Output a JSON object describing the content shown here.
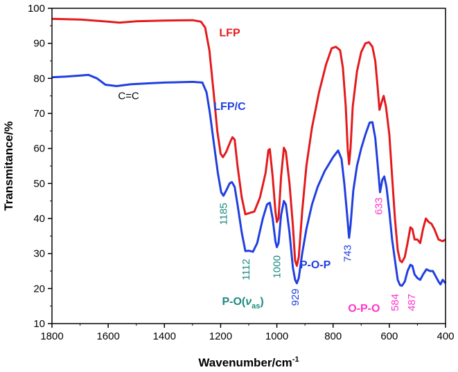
{
  "chart_data": {
    "type": "line",
    "title": "",
    "xlabel": "Wavenumber/cm",
    "xlabel_sup": "-1",
    "ylabel": "Transmitance/%",
    "xlim": [
      1800,
      400
    ],
    "ylim": [
      10,
      100
    ],
    "x_ticks": [
      "1800",
      "1600",
      "1400",
      "1200",
      "1000",
      "800",
      "600",
      "400"
    ],
    "y_ticks": [
      "10",
      "20",
      "30",
      "40",
      "50",
      "60",
      "70",
      "80",
      "90",
      "100"
    ],
    "grid": false,
    "series": [
      {
        "name": "LFP",
        "color": "#e31a1c",
        "points": [
          [
            1800,
            97
          ],
          [
            1700,
            96.8
          ],
          [
            1600,
            96.2
          ],
          [
            1560,
            95.9
          ],
          [
            1500,
            96.3
          ],
          [
            1400,
            96.5
          ],
          [
            1300,
            96.6
          ],
          [
            1270,
            96.2
          ],
          [
            1255,
            94.5
          ],
          [
            1240,
            88
          ],
          [
            1225,
            76
          ],
          [
            1212,
            65
          ],
          [
            1200,
            58.5
          ],
          [
            1192,
            57.5
          ],
          [
            1180,
            59
          ],
          [
            1165,
            62
          ],
          [
            1158,
            63.2
          ],
          [
            1150,
            62.5
          ],
          [
            1140,
            55
          ],
          [
            1125,
            46
          ],
          [
            1112,
            41.2
          ],
          [
            1100,
            41.5
          ],
          [
            1080,
            42
          ],
          [
            1060,
            46
          ],
          [
            1040,
            53
          ],
          [
            1030,
            59.5
          ],
          [
            1025,
            59.8
          ],
          [
            1015,
            52
          ],
          [
            1005,
            42
          ],
          [
            1000,
            39
          ],
          [
            994,
            40
          ],
          [
            985,
            52
          ],
          [
            975,
            60.2
          ],
          [
            968,
            59
          ],
          [
            955,
            50
          ],
          [
            943,
            38
          ],
          [
            935,
            28
          ],
          [
            929,
            26.5
          ],
          [
            922,
            29
          ],
          [
            910,
            42
          ],
          [
            895,
            55
          ],
          [
            875,
            66
          ],
          [
            850,
            76
          ],
          [
            825,
            84
          ],
          [
            805,
            88.6
          ],
          [
            790,
            89
          ],
          [
            775,
            88
          ],
          [
            765,
            83
          ],
          [
            755,
            72
          ],
          [
            748,
            60
          ],
          [
            743,
            55.5
          ],
          [
            738,
            60
          ],
          [
            730,
            72
          ],
          [
            715,
            82
          ],
          [
            700,
            87.5
          ],
          [
            685,
            90
          ],
          [
            672,
            90.3
          ],
          [
            660,
            89
          ],
          [
            650,
            85
          ],
          [
            642,
            78
          ],
          [
            635,
            71
          ],
          [
            628,
            73
          ],
          [
            620,
            75
          ],
          [
            612,
            72
          ],
          [
            600,
            64
          ],
          [
            590,
            52
          ],
          [
            580,
            40
          ],
          [
            570,
            31
          ],
          [
            562,
            28
          ],
          [
            555,
            27.5
          ],
          [
            545,
            29
          ],
          [
            535,
            33
          ],
          [
            525,
            37.5
          ],
          [
            518,
            37
          ],
          [
            510,
            34
          ],
          [
            500,
            34
          ],
          [
            490,
            33
          ],
          [
            480,
            37
          ],
          [
            470,
            40
          ],
          [
            460,
            39
          ],
          [
            450,
            38.5
          ],
          [
            440,
            37
          ],
          [
            425,
            34
          ],
          [
            410,
            33.5
          ],
          [
            400,
            34
          ]
        ]
      },
      {
        "name": "LFP/C",
        "color": "#1f3fe0",
        "points": [
          [
            1800,
            80.3
          ],
          [
            1750,
            80.5
          ],
          [
            1700,
            80.8
          ],
          [
            1670,
            81
          ],
          [
            1640,
            80
          ],
          [
            1610,
            78.2
          ],
          [
            1570,
            77.8
          ],
          [
            1520,
            78.3
          ],
          [
            1450,
            78.6
          ],
          [
            1400,
            78.8
          ],
          [
            1300,
            79
          ],
          [
            1265,
            78.8
          ],
          [
            1250,
            76
          ],
          [
            1238,
            70
          ],
          [
            1225,
            62
          ],
          [
            1210,
            53
          ],
          [
            1198,
            47.5
          ],
          [
            1190,
            46.5
          ],
          [
            1180,
            48
          ],
          [
            1168,
            50
          ],
          [
            1160,
            50.4
          ],
          [
            1150,
            49
          ],
          [
            1140,
            44
          ],
          [
            1125,
            36
          ],
          [
            1112,
            30.7
          ],
          [
            1100,
            30.8
          ],
          [
            1085,
            30.5
          ],
          [
            1070,
            33
          ],
          [
            1050,
            40
          ],
          [
            1035,
            44
          ],
          [
            1025,
            44.5
          ],
          [
            1015,
            40
          ],
          [
            1005,
            33.5
          ],
          [
            1000,
            31.8
          ],
          [
            994,
            33
          ],
          [
            985,
            41
          ],
          [
            975,
            45
          ],
          [
            968,
            44
          ],
          [
            955,
            36
          ],
          [
            943,
            26
          ],
          [
            935,
            22.5
          ],
          [
            929,
            21.5
          ],
          [
            922,
            23
          ],
          [
            910,
            30
          ],
          [
            895,
            37
          ],
          [
            875,
            44
          ],
          [
            855,
            49
          ],
          [
            830,
            53.5
          ],
          [
            800,
            57.5
          ],
          [
            782,
            59.4
          ],
          [
            770,
            57
          ],
          [
            760,
            50
          ],
          [
            750,
            41
          ],
          [
            743,
            34.5
          ],
          [
            738,
            38
          ],
          [
            728,
            48
          ],
          [
            715,
            55
          ],
          [
            700,
            60
          ],
          [
            685,
            64
          ],
          [
            670,
            67.4
          ],
          [
            660,
            67.5
          ],
          [
            650,
            63
          ],
          [
            642,
            56
          ],
          [
            633,
            47.5
          ],
          [
            625,
            51
          ],
          [
            618,
            52
          ],
          [
            610,
            49
          ],
          [
            600,
            42
          ],
          [
            590,
            34
          ],
          [
            578,
            27
          ],
          [
            570,
            22.5
          ],
          [
            562,
            21
          ],
          [
            555,
            20.8
          ],
          [
            545,
            22
          ],
          [
            535,
            25
          ],
          [
            525,
            26.8
          ],
          [
            518,
            26.5
          ],
          [
            510,
            24
          ],
          [
            500,
            23
          ],
          [
            490,
            22.5
          ],
          [
            480,
            24
          ],
          [
            468,
            25.5
          ],
          [
            455,
            25
          ],
          [
            445,
            25
          ],
          [
            435,
            23.5
          ],
          [
            425,
            22
          ],
          [
            418,
            21.2
          ],
          [
            410,
            22.5
          ],
          [
            400,
            21.5
          ]
        ]
      }
    ],
    "annotations": [
      {
        "text": "LFP",
        "color": "#e31a1c",
        "x": 1205,
        "y": 92,
        "anchor": "start",
        "weight": "bold",
        "rotate": false
      },
      {
        "text": "LFP/C",
        "color": "#1f3fe0",
        "x": 1225,
        "y": 71,
        "anchor": "start",
        "weight": "bold",
        "rotate": false
      },
      {
        "text": "C=C",
        "color": "#000000",
        "x": 1565,
        "y": 74,
        "anchor": "start",
        "weight": "normal",
        "rotate": false
      },
      {
        "text": "P-O-P",
        "color": "#1f3fe0",
        "x": 918,
        "y": 25.8,
        "anchor": "start",
        "weight": "bold",
        "rotate": false
      },
      {
        "text": "O-P-O",
        "color": "#ff33cc",
        "x": 747,
        "y": 13.4,
        "anchor": "start",
        "weight": "bold",
        "rotate": false
      },
      {
        "text": "1185",
        "color": "#1b8a80",
        "x": 1178,
        "y": 44.5,
        "anchor": "end",
        "weight": "normal",
        "rotate": true
      },
      {
        "text": "1112",
        "color": "#1b8a80",
        "x": 1098,
        "y": 28.5,
        "anchor": "end",
        "weight": "normal",
        "rotate": true
      },
      {
        "text": "1000",
        "color": "#1b8a80",
        "x": 988,
        "y": 29.5,
        "anchor": "end",
        "weight": "normal",
        "rotate": true
      },
      {
        "text": "929",
        "color": "#1f3fe0",
        "x": 923,
        "y": 20,
        "anchor": "end",
        "weight": "normal",
        "rotate": true
      },
      {
        "text": "743",
        "color": "#1f3fe0",
        "x": 736,
        "y": 32.5,
        "anchor": "end",
        "weight": "normal",
        "rotate": true
      },
      {
        "text": "633",
        "color": "#ff33cc",
        "x": 626,
        "y": 46,
        "anchor": "end",
        "weight": "normal",
        "rotate": true
      },
      {
        "text": "584",
        "color": "#ff33cc",
        "x": 568,
        "y": 18.5,
        "anchor": "end",
        "weight": "normal",
        "rotate": true
      },
      {
        "text": "487",
        "color": "#ff33cc",
        "x": 508,
        "y": 18.5,
        "anchor": "end",
        "weight": "normal",
        "rotate": true
      }
    ],
    "po_label": {
      "prefix": "P-O(",
      "nu": "ν",
      "sub": "as",
      "suffix": ")",
      "color": "#1b8a80",
      "x": 1195,
      "y": 15.3
    }
  }
}
